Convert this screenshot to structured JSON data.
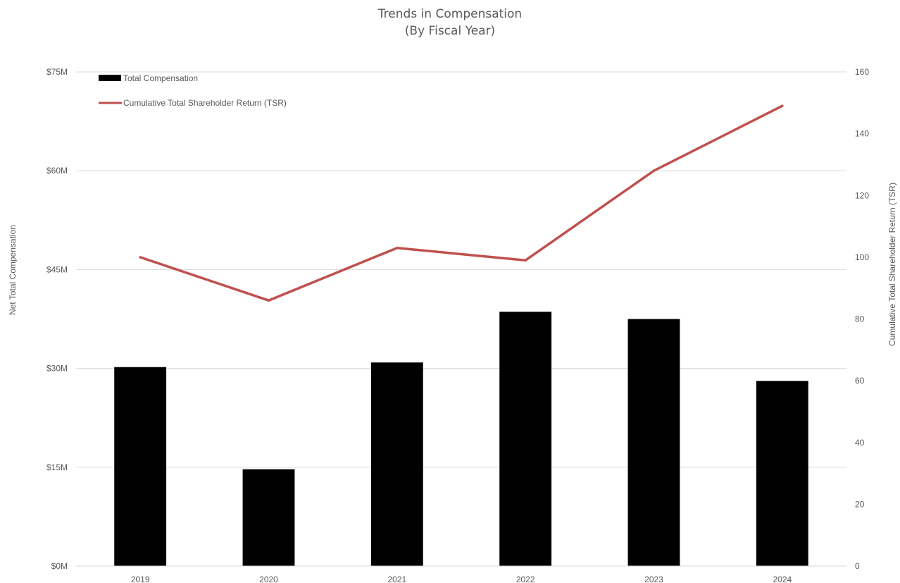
{
  "chart_data": {
    "type": "bar",
    "title": "Trends in Compensation",
    "subtitle": "(By Fiscal Year)",
    "categories": [
      "2019",
      "2020",
      "2021",
      "2022",
      "2023",
      "2024"
    ],
    "series": [
      {
        "name": "Total Compensation",
        "type": "bar",
        "axis": "left",
        "color": "#000000",
        "values": [
          30.2,
          14.7,
          30.9,
          38.6,
          37.5,
          28.1
        ]
      },
      {
        "name": "Cumulative Total Shareholder Return (TSR)",
        "type": "line",
        "axis": "right",
        "color": "#C0504D",
        "values": [
          100,
          86,
          103,
          99,
          128,
          149
        ]
      }
    ],
    "ylabel": "Net Total Compensation",
    "y2label": "Cumulative Total Shareholder Return (TSR)",
    "ylim": [
      0,
      75
    ],
    "y2lim": [
      0,
      160
    ],
    "yticks": [
      "$0M",
      "$15M",
      "$30M",
      "$45M",
      "$60M",
      "$75M"
    ],
    "yticks_values": [
      0,
      15,
      30,
      45,
      60,
      75
    ],
    "y2ticks": [
      "0",
      "20",
      "40",
      "60",
      "80",
      "100",
      "120",
      "140",
      "160"
    ],
    "y2ticks_values": [
      0,
      20,
      40,
      60,
      80,
      100,
      120,
      140,
      160
    ],
    "grid": true,
    "legend_position": "top-left"
  }
}
